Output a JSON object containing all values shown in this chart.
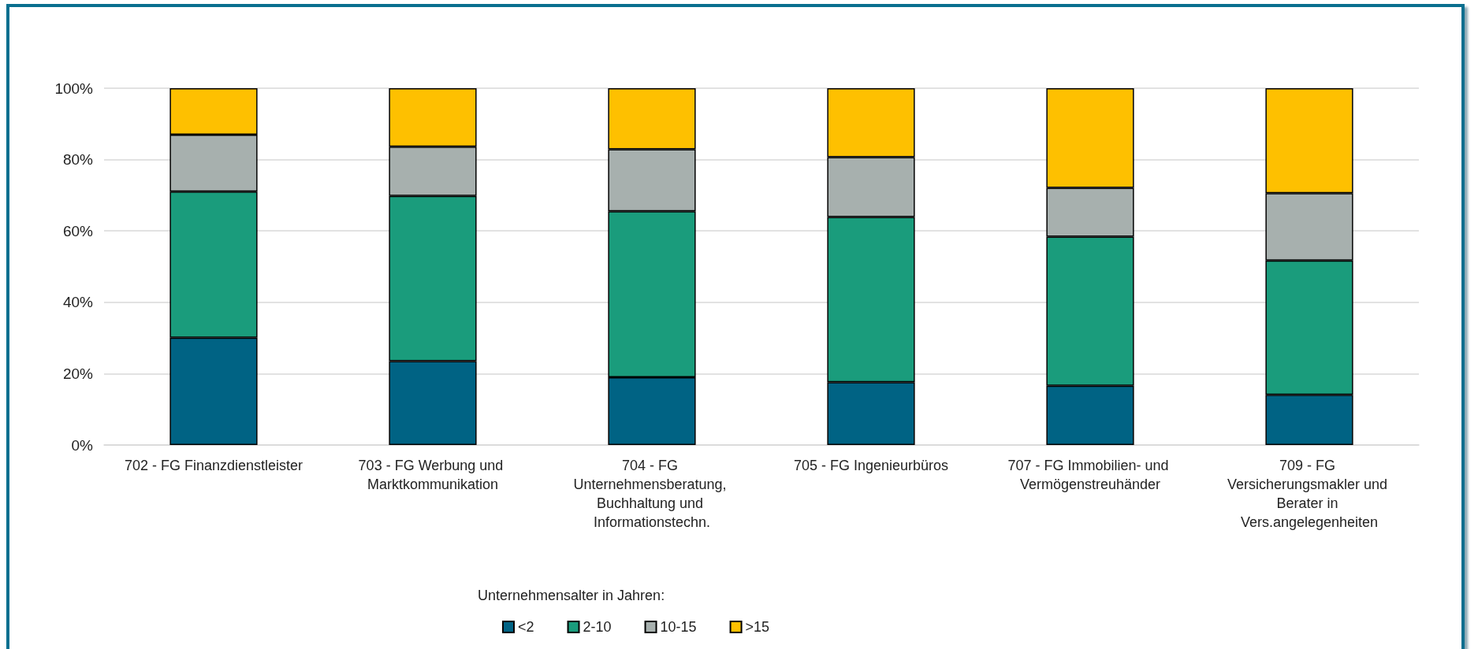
{
  "chart_data": {
    "type": "bar",
    "stacked": true,
    "categories": [
      "702 - FG Finanzdienstleister",
      "703 - FG Werbung und Marktkommunikation",
      "704 - FG Unternehmensberatung, Buchhaltung und Informationstechn.",
      "705 - FG Ingenieurbüros",
      "707 - FG Immobilien- und Vermögenstreuhänder",
      "709 - FG Versicherungsmakler und Berater in Vers.angelegenheiten"
    ],
    "series": [
      {
        "name": "<2",
        "color": "#006384",
        "values": [
          30.1,
          23.5,
          19.0,
          17.6,
          16.6,
          14.1
        ]
      },
      {
        "name": "2-10",
        "color": "#1a9c7c",
        "values": [
          40.9,
          46.3,
          46.5,
          46.3,
          41.8,
          37.6
        ]
      },
      {
        "name": "10-15",
        "color": "#a7b0ae",
        "values": [
          16.0,
          13.8,
          17.4,
          16.8,
          13.7,
          18.9
        ]
      },
      {
        "name": ">15",
        "color": "#fec000",
        "values": [
          13.0,
          16.4,
          17.1,
          19.3,
          27.9,
          29.4
        ]
      }
    ],
    "ylim": [
      0,
      100
    ],
    "yticks": [
      {
        "value": 0,
        "label": "0%"
      },
      {
        "value": 20,
        "label": "20%"
      },
      {
        "value": 40,
        "label": "40%"
      },
      {
        "value": 60,
        "label": "60%"
      },
      {
        "value": 80,
        "label": "80%"
      },
      {
        "value": 100,
        "label": "100%"
      }
    ],
    "grid": "y",
    "legend": "bottom",
    "legend_title": "Unternehmensalter in Jahren:"
  }
}
